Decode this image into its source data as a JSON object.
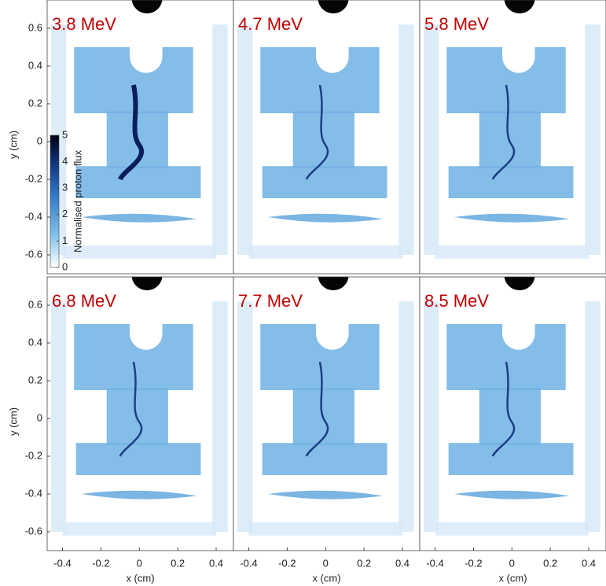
{
  "chart_data": [
    {
      "type": "image",
      "title": "3.8 MeV",
      "xlim": [
        -0.48,
        0.49
      ],
      "ylim": [
        -0.7,
        0.75
      ],
      "yticks": [
        -0.6,
        -0.4,
        -0.2,
        0,
        0.2,
        0.4,
        0.6
      ],
      "ylabel": "y (cm)",
      "colorbar": {
        "label": "Normalised proton flux",
        "lim": [
          0,
          5
        ],
        "ticks": [
          0,
          1,
          2,
          3,
          4,
          5
        ]
      }
    },
    {
      "type": "image",
      "title": "4.7 MeV",
      "xlim": [
        -0.48,
        0.49
      ],
      "ylim": [
        -0.7,
        0.75
      ]
    },
    {
      "type": "image",
      "title": "5.8 MeV",
      "xlim": [
        -0.48,
        0.49
      ],
      "ylim": [
        -0.7,
        0.75
      ]
    },
    {
      "type": "image",
      "title": "6.8 MeV",
      "xlim": [
        -0.48,
        0.49
      ],
      "ylim": [
        -0.7,
        0.75
      ],
      "yticks": [
        -0.6,
        -0.4,
        -0.2,
        0,
        0.2,
        0.4,
        0.6
      ],
      "ylabel": "y (cm)",
      "xticks": [
        -0.4,
        -0.2,
        0,
        0.2,
        0.4
      ],
      "xlabel": "x (cm)"
    },
    {
      "type": "image",
      "title": "7.7 MeV",
      "xlim": [
        -0.48,
        0.49
      ],
      "ylim": [
        -0.7,
        0.75
      ],
      "xticks": [
        -0.4,
        -0.2,
        0,
        0.2,
        0.4
      ],
      "xlabel": "x (cm)"
    },
    {
      "type": "image",
      "title": "8.5 MeV",
      "xlim": [
        -0.48,
        0.49
      ],
      "ylim": [
        -0.7,
        0.75
      ],
      "xticks": [
        -0.4,
        -0.2,
        0,
        0.2,
        0.4
      ],
      "xlabel": "x (cm)"
    }
  ]
}
